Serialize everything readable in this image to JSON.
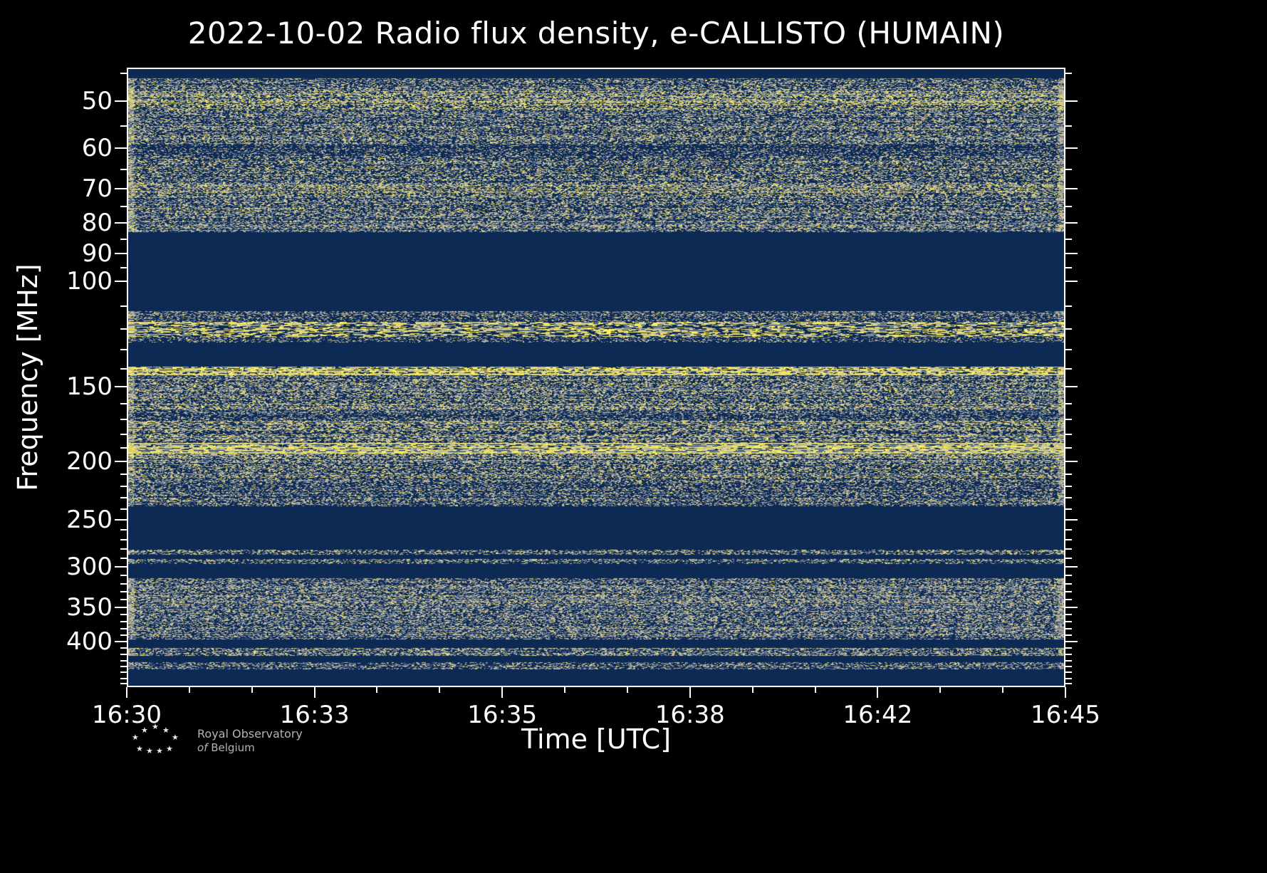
{
  "title": "2022-10-02 Radio flux density, e-CALLISTO (HUMAIN)",
  "date": "2022-10-02",
  "instrument": "e-CALLISTO",
  "station": "HUMAIN",
  "colors": {
    "page_background": "#000000",
    "frame": "#ffffff",
    "text": "#ffffff",
    "plot_background": "#0d2a55"
  },
  "chart_data": {
    "type": "heatmap",
    "title": "2022-10-02 Radio flux density, e-CALLISTO (HUMAIN)",
    "xlabel": "Time [UTC]",
    "ylabel": "Frequency [MHz]",
    "x_ticks": [
      "16:30",
      "16:33",
      "16:35",
      "16:38",
      "16:42",
      "16:45"
    ],
    "x_range_utc": [
      "16:30",
      "16:45"
    ],
    "x_minor_ticks_per_span": 15,
    "y_ticks": [
      50,
      60,
      70,
      80,
      90,
      100,
      150,
      200,
      250,
      300,
      350,
      400
    ],
    "y_minor_ticks": [
      45,
      55,
      65,
      75,
      85,
      95,
      110,
      120,
      130,
      140,
      160,
      170,
      180,
      190,
      210,
      220,
      230,
      240,
      260,
      270,
      280,
      290,
      310,
      320,
      330,
      340,
      360,
      370,
      380,
      390,
      410,
      420,
      430,
      440,
      450,
      460,
      470
    ],
    "y_scale": "log",
    "y_axis_inverted": true,
    "y_range_mhz": [
      44,
      476
    ],
    "legend": "none",
    "grid": false,
    "palette": {
      "bg": "#0d2a55",
      "gray": "#5c6f92",
      "tan": "#beb995",
      "yellow": "#e9e066",
      "bright": "#fff15e"
    },
    "bands": [
      {
        "from": 0.0,
        "to": 0.015,
        "kind": "blank",
        "note": "dark strip at top edge"
      },
      {
        "from": 0.015,
        "to": 0.036,
        "kind": "noise",
        "density": 0.5,
        "yellow": 0.1,
        "run": 3,
        "note": "broadband noise ~46-49 MHz"
      },
      {
        "from": 0.036,
        "to": 0.066,
        "kind": "noise",
        "density": 0.6,
        "yellow": 0.25,
        "run": 3,
        "note": "brighter rows near 50 MHz"
      },
      {
        "from": 0.066,
        "to": 0.121,
        "kind": "noise",
        "density": 0.5,
        "yellow": 0.1,
        "run": 3,
        "note": "noise 52-58 MHz"
      },
      {
        "from": 0.121,
        "to": 0.141,
        "kind": "noise",
        "density": 0.3,
        "yellow": 0.02,
        "run": 3,
        "note": "darker stripe near 60 MHz"
      },
      {
        "from": 0.141,
        "to": 0.185,
        "kind": "noise",
        "density": 0.5,
        "yellow": 0.12,
        "run": 3,
        "note": "noise 62-68 MHz"
      },
      {
        "from": 0.185,
        "to": 0.205,
        "kind": "noise",
        "density": 0.55,
        "yellow": 0.2,
        "run": 3,
        "note": "brighter rows near 70 MHz"
      },
      {
        "from": 0.205,
        "to": 0.264,
        "kind": "noise",
        "density": 0.5,
        "yellow": 0.1,
        "run": 3,
        "note": "noise 72-84 MHz"
      },
      {
        "from": 0.264,
        "to": 0.393,
        "kind": "blank",
        "note": "quiet band ~85-112 MHz"
      },
      {
        "from": 0.393,
        "to": 0.41,
        "kind": "noise",
        "density": 0.4,
        "yellow": 0.05,
        "run": 3,
        "note": "faint noise ~113-117 MHz"
      },
      {
        "from": 0.41,
        "to": 0.434,
        "kind": "noise",
        "density": 0.6,
        "yellow": 0.5,
        "run": 10,
        "note": "bright yellow bursty line ~120 MHz"
      },
      {
        "from": 0.434,
        "to": 0.443,
        "kind": "noise",
        "density": 0.35,
        "yellow": 0.05,
        "run": 3,
        "note": "faint noise below 125 MHz"
      },
      {
        "from": 0.443,
        "to": 0.483,
        "kind": "blank",
        "note": "quiet band ~126-138 MHz"
      },
      {
        "from": 0.483,
        "to": 0.497,
        "kind": "noise",
        "density": 0.75,
        "yellow": 0.55,
        "run": 6,
        "note": "bright speckled line ~140 MHz"
      },
      {
        "from": 0.497,
        "to": 0.552,
        "kind": "noise",
        "density": 0.55,
        "yellow": 0.12,
        "run": 3,
        "note": "noise around 150 MHz"
      },
      {
        "from": 0.552,
        "to": 0.571,
        "kind": "noise",
        "density": 0.4,
        "yellow": 0.05,
        "run": 3,
        "note": "darker rows ~160 MHz"
      },
      {
        "from": 0.571,
        "to": 0.606,
        "kind": "noise",
        "density": 0.55,
        "yellow": 0.2,
        "run": 4,
        "note": "yellow-speckled rows ~170 MHz"
      },
      {
        "from": 0.606,
        "to": 0.624,
        "kind": "noise",
        "density": 0.85,
        "yellow": 0.6,
        "run": 8,
        "note": "dense bright yellow band ~180 MHz"
      },
      {
        "from": 0.624,
        "to": 0.663,
        "kind": "noise",
        "density": 0.55,
        "yellow": 0.15,
        "run": 3,
        "note": "noise 185-195 MHz"
      },
      {
        "from": 0.663,
        "to": 0.709,
        "kind": "noise",
        "density": 0.45,
        "yellow": 0.06,
        "run": 3,
        "note": "noise to ~210 MHz"
      },
      {
        "from": 0.709,
        "to": 0.78,
        "kind": "blank",
        "note": "quiet band ~212-245 MHz"
      },
      {
        "from": 0.78,
        "to": 0.788,
        "kind": "noise",
        "density": 0.5,
        "yellow": 0.1,
        "run": 3,
        "note": "thin line near 250 MHz"
      },
      {
        "from": 0.788,
        "to": 0.794,
        "kind": "blank"
      },
      {
        "from": 0.794,
        "to": 0.802,
        "kind": "noise",
        "density": 0.45,
        "yellow": 0.08,
        "run": 3,
        "note": "thin line ~255 MHz"
      },
      {
        "from": 0.802,
        "to": 0.826,
        "kind": "blank",
        "note": "quiet ~258-270 MHz"
      },
      {
        "from": 0.826,
        "to": 0.925,
        "kind": "noise",
        "density": 0.55,
        "yellow": 0.05,
        "run": 3,
        "note": "broad tan/gray noise 270-400 MHz"
      },
      {
        "from": 0.925,
        "to": 0.939,
        "kind": "blank"
      },
      {
        "from": 0.939,
        "to": 0.951,
        "kind": "noise",
        "density": 0.5,
        "yellow": 0.12,
        "run": 3,
        "note": "thin line ~410 MHz"
      },
      {
        "from": 0.951,
        "to": 0.962,
        "kind": "blank"
      },
      {
        "from": 0.962,
        "to": 0.974,
        "kind": "noise",
        "density": 0.45,
        "yellow": 0.05,
        "run": 3,
        "note": "thin line ~430 MHz"
      },
      {
        "from": 0.974,
        "to": 1.0,
        "kind": "blank",
        "note": "dark strip at bottom edge"
      }
    ]
  },
  "footer": {
    "org_line1": "Royal Observatory",
    "org_of": "of",
    "org_name": "Belgium"
  }
}
